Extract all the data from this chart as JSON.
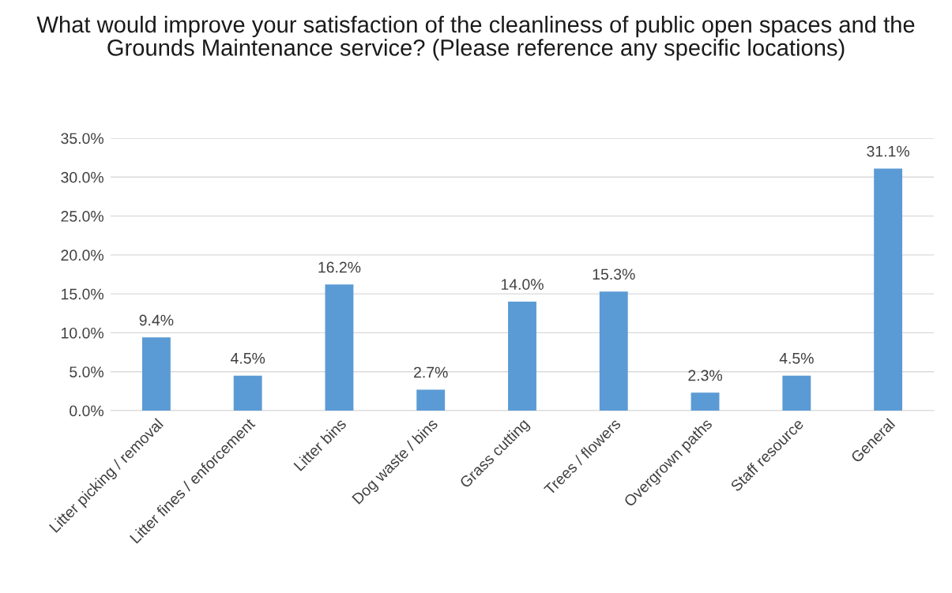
{
  "chart_data": {
    "type": "bar",
    "title": "What would improve your satisfaction of the cleanliness of public open spaces and the Grounds Maintenance service? (Please reference any specific locations)",
    "categories": [
      "Litter picking / removal",
      "Litter fines / enforcement",
      "Litter bins",
      "Dog waste / bins",
      "Grass cutting",
      "Trees / flowers",
      "Overgrown paths",
      "Staff resource",
      "General"
    ],
    "values": [
      9.4,
      4.5,
      16.2,
      2.7,
      14.0,
      15.3,
      2.3,
      4.5,
      31.1
    ],
    "value_labels": [
      "9.4%",
      "4.5%",
      "16.2%",
      "2.7%",
      "14.0%",
      "15.3%",
      "2.3%",
      "4.5%",
      "31.1%"
    ],
    "color": "#5b9bd5",
    "ylim": [
      0,
      35
    ],
    "yticks": [
      {
        "value": 0,
        "label": "0.0%"
      },
      {
        "value": 5,
        "label": "5.0%"
      },
      {
        "value": 10,
        "label": "10.0%"
      },
      {
        "value": 15,
        "label": "15.0%"
      },
      {
        "value": 20,
        "label": "20.0%"
      },
      {
        "value": 25,
        "label": "25.0%"
      },
      {
        "value": 30,
        "label": "30.0%"
      },
      {
        "value": 35,
        "label": "35.0%"
      }
    ],
    "grid": "y"
  }
}
